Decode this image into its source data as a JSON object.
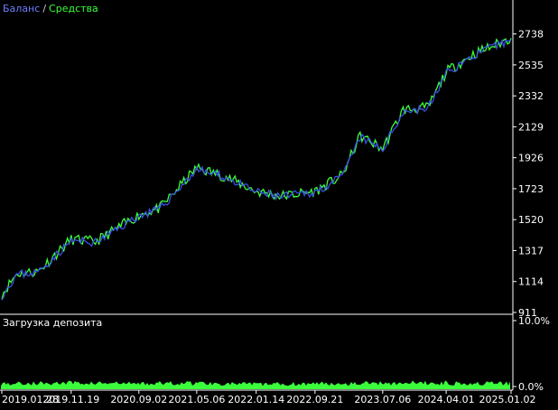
{
  "legend": {
    "balance": "Баланс",
    "separator": " / ",
    "equity": "Средства"
  },
  "sub_title": "Загрузка депозита",
  "colors": {
    "background": "#000000",
    "axis": "#ffffff",
    "balance": "#3b4fe0",
    "equity": "#3cff3c",
    "load": "#3cff3c"
  },
  "chart_data": [
    {
      "type": "line",
      "title": "",
      "legend_position": "top-left",
      "grid": false,
      "ylim": [
        911,
        2789
      ],
      "y_ticks": [
        911,
        1114,
        1317,
        1520,
        1723,
        1926,
        2129,
        2332,
        2535,
        2738
      ],
      "x_ticks": [
        "2019.01.28",
        "2019.11.19",
        "2020.09.02",
        "2021.05.06",
        "2022.01.14",
        "2022.09.21",
        "2023.07.06",
        "2024.04.01",
        "2025.01.02"
      ],
      "series": [
        {
          "name": "Баланс",
          "x": [
            "2019.01.28",
            "2019.04.01",
            "2019.07.01",
            "2019.11.19",
            "2020.03.01",
            "2020.09.02",
            "2020.12.01",
            "2021.05.06",
            "2021.09.01",
            "2022.01.14",
            "2022.05.01",
            "2022.09.21",
            "2023.01.15",
            "2023.04.01",
            "2023.07.06",
            "2023.10.01",
            "2024.01.15",
            "2024.04.01",
            "2024.08.01",
            "2025.01.02"
          ],
          "values": [
            1020,
            1160,
            1175,
            1380,
            1370,
            1545,
            1590,
            1850,
            1800,
            1700,
            1670,
            1700,
            1800,
            2060,
            1980,
            2230,
            2250,
            2480,
            2600,
            2700
          ]
        },
        {
          "name": "Средства",
          "x": [
            "2019.01.28",
            "2019.04.01",
            "2019.07.01",
            "2019.11.19",
            "2020.03.01",
            "2020.09.02",
            "2020.12.01",
            "2021.05.06",
            "2021.09.01",
            "2022.01.14",
            "2022.05.01",
            "2022.09.21",
            "2023.01.15",
            "2023.04.01",
            "2023.07.06",
            "2023.10.01",
            "2024.01.15",
            "2024.04.01",
            "2024.08.01",
            "2025.01.02"
          ],
          "values": [
            1030,
            1165,
            1180,
            1390,
            1375,
            1550,
            1595,
            1860,
            1805,
            1705,
            1675,
            1705,
            1810,
            2070,
            1985,
            2240,
            2255,
            2490,
            2610,
            2710
          ]
        }
      ]
    },
    {
      "type": "area",
      "title": "Загрузка депозита",
      "ylim": [
        0,
        10
      ],
      "y_tick_labels": [
        "10.0%",
        "0.0%"
      ],
      "series": [
        {
          "name": "Загрузка депозита",
          "x": [
            "2019.01.28",
            "2019.11.19",
            "2020.09.02",
            "2021.05.06",
            "2022.01.14",
            "2022.09.21",
            "2023.07.06",
            "2024.04.01",
            "2025.01.02"
          ],
          "values": [
            0.9,
            1.0,
            0.9,
            1.0,
            0.8,
            0.9,
            1.0,
            1.0,
            0.9
          ]
        }
      ]
    }
  ]
}
